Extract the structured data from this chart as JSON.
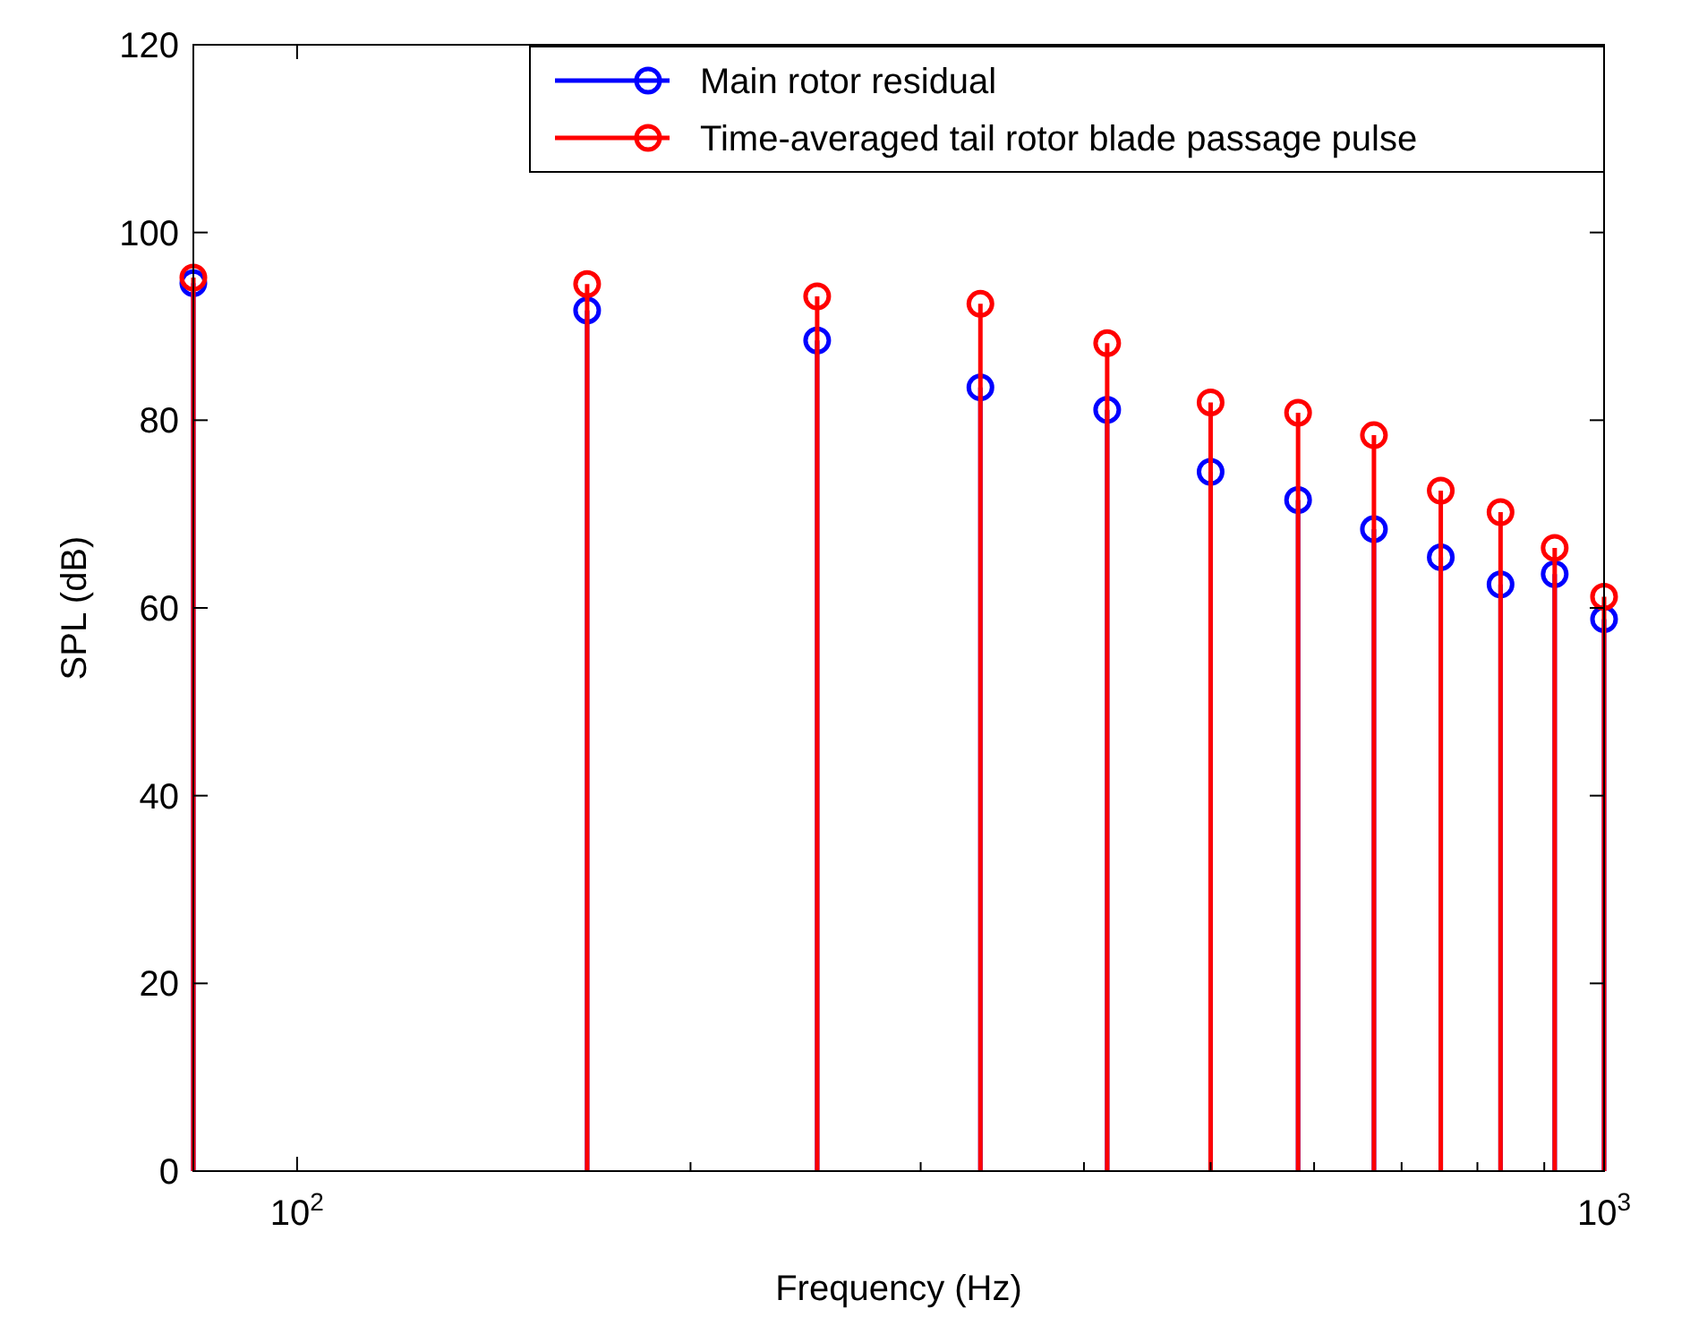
{
  "chart_data": {
    "type": "lollipop",
    "xlabel": "Frequency (Hz)",
    "ylabel": "SPL (dB)",
    "log": "x",
    "x": [
      83.3,
      166.7,
      250,
      333.3,
      416.7,
      500,
      583.3,
      666.7,
      750,
      833.3,
      916.7,
      1000
    ],
    "series": [
      {
        "name": "Main rotor residual",
        "color": "#0000ff",
        "values": [
          94.6,
          91.7,
          88.5,
          83.5,
          81.1,
          74.5,
          71.5,
          68.4,
          65.4,
          62.5,
          63.6,
          58.8
        ]
      },
      {
        "name": "Time-averaged tail rotor blade passage pulse",
        "color": "#ff0000",
        "values": [
          95.2,
          94.5,
          93.2,
          92.4,
          88.2,
          81.9,
          80.8,
          78.4,
          72.5,
          70.2,
          66.4,
          61.2
        ]
      }
    ],
    "xlim": [
      83.3,
      1000
    ],
    "ylim": [
      0,
      120
    ],
    "xticks": [
      {
        "value": 100,
        "label": "10$^{2}$"
      },
      {
        "value": 200,
        "label": null
      },
      {
        "value": 300,
        "label": null
      },
      {
        "value": 400,
        "label": null
      },
      {
        "value": 500,
        "label": null
      },
      {
        "value": 600,
        "label": null
      },
      {
        "value": 700,
        "label": null
      },
      {
        "value": 800,
        "label": null
      },
      {
        "value": 900,
        "label": null
      },
      {
        "value": 1000,
        "label": "10$^{3}$"
      }
    ],
    "yticks": [
      0,
      20,
      40,
      60,
      80,
      100,
      120
    ],
    "marker": "circle",
    "legend": "top right",
    "grid": false
  }
}
